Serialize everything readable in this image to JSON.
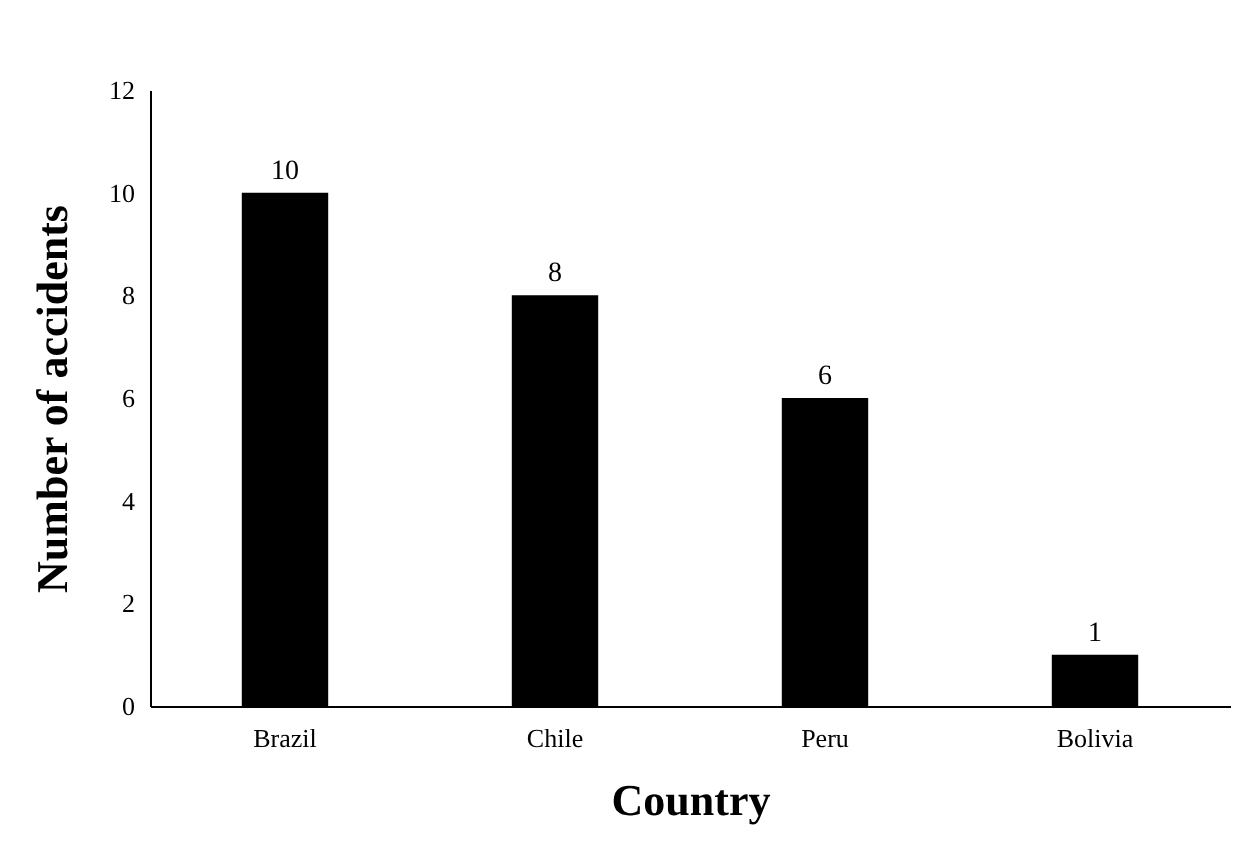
{
  "chart_data": {
    "type": "bar",
    "xlabel": "Country",
    "ylabel": "Number of accidents",
    "categories": [
      "Brazil",
      "Chile",
      "Peru",
      "Bolivia"
    ],
    "values": [
      10,
      8,
      6,
      1
    ],
    "color": "#000000",
    "ylim": [
      0,
      12
    ],
    "yticks": [
      0,
      2,
      4,
      6,
      8,
      10,
      12
    ],
    "grid": false,
    "data_labels": true
  }
}
